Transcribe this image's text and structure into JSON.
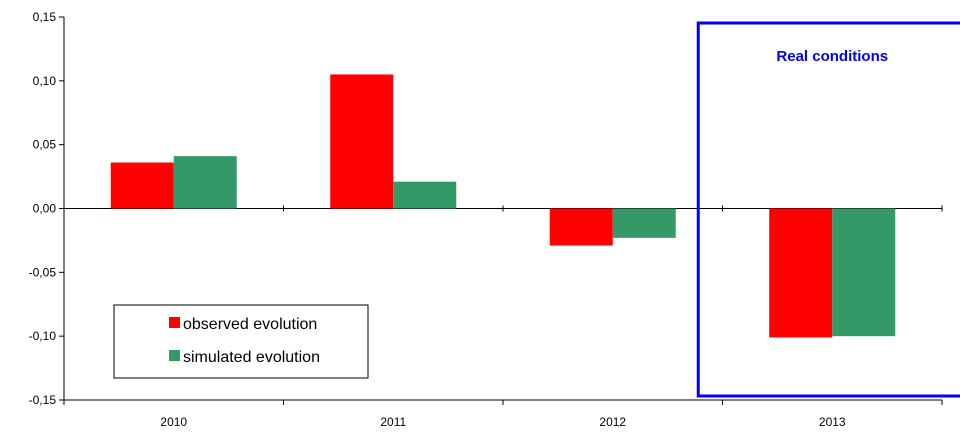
{
  "chart_data": {
    "type": "bar",
    "categories": [
      "2010",
      "2011",
      "2012",
      "2013"
    ],
    "series": [
      {
        "name": "observed evolution",
        "color": "#ff0000",
        "values": [
          0.036,
          0.105,
          -0.029,
          -0.101
        ]
      },
      {
        "name": "simulated evolution",
        "color": "#339966",
        "values": [
          0.041,
          0.021,
          -0.023,
          -0.1
        ]
      }
    ],
    "ylim": [
      -0.15,
      0.15
    ],
    "y_ticks": [
      "0,15",
      "0,10",
      "0,05",
      "0,00",
      "-0,05",
      "-0,10",
      "-0,15"
    ],
    "y_tick_values": [
      0.15,
      0.1,
      0.05,
      0.0,
      -0.05,
      -0.1,
      -0.15
    ],
    "grid": false,
    "legend_position": "bottom-left",
    "annotation": {
      "text": "Real conditions",
      "category": "2013",
      "color": "#0000ff"
    }
  }
}
